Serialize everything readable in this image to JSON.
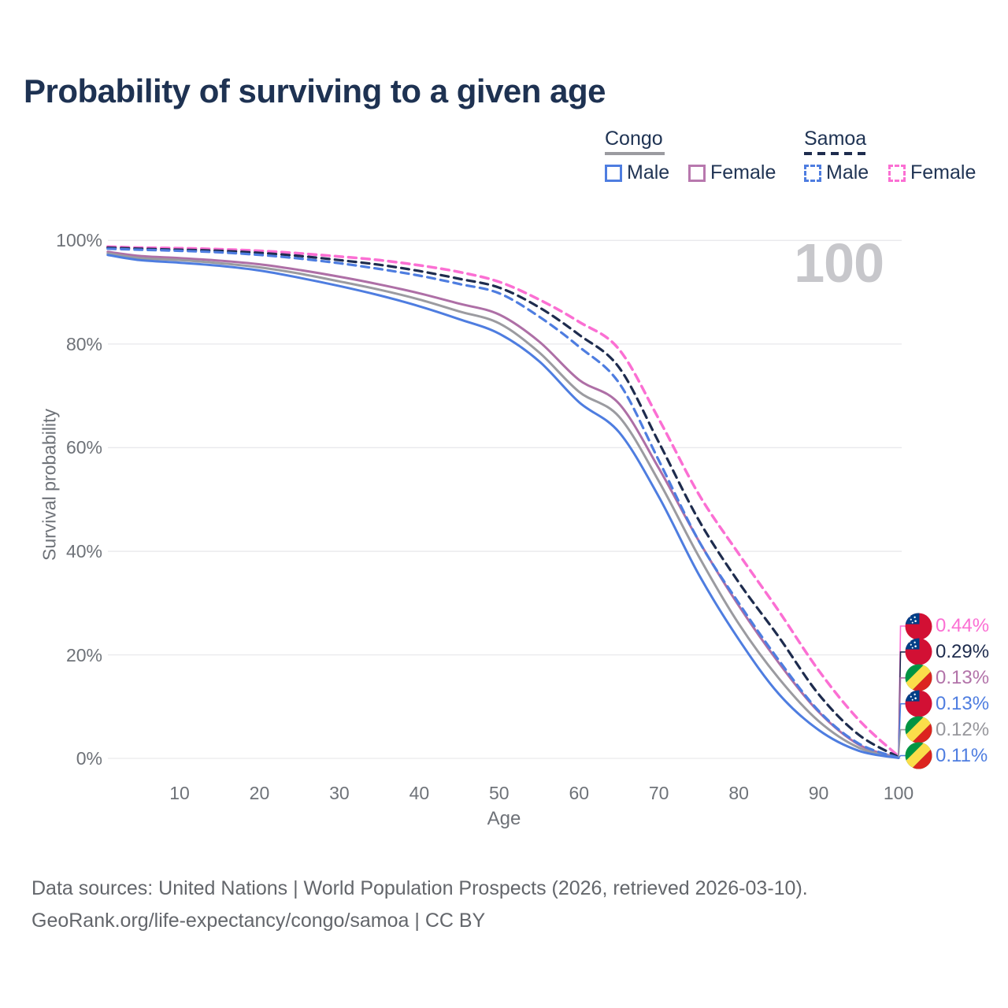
{
  "title": "Probability of surviving to a given age",
  "watermark": "100",
  "legend": {
    "congo": {
      "label": "Congo",
      "male": "Male",
      "female": "Female"
    },
    "samoa": {
      "label": "Samoa",
      "male": "Male",
      "female": "Female"
    }
  },
  "footer": {
    "line1": "Data sources: United Nations | World Population Prospects (2026, retrieved 2026-03-10).",
    "line2": "GeoRank.org/life-expectancy/congo/samoa | CC BY"
  },
  "colors": {
    "title_navy": "#1e3252",
    "congo_male_blue": "#4e7de0",
    "congo_both_gray": "#9b9ba0",
    "congo_female_plum": "#b078aa",
    "samoa_male_blue": "#4e7de0",
    "samoa_both_navy": "#1e2c4e",
    "samoa_female_pink": "#fb6fd3",
    "gridline": "#e9e9ec",
    "axis_text": "#6e7278",
    "watermark_gray": "#c7c7cb",
    "samoa_flag_red": "#d21034",
    "samoa_flag_blue": "#003f87",
    "congo_flag_green": "#009543",
    "congo_flag_yellow": "#fbde4a",
    "congo_flag_red": "#dc241f"
  },
  "chart_data": {
    "type": "line",
    "title": "Probability of surviving to a given age",
    "xlabel": "Age",
    "ylabel": "Survival probability",
    "xlim": [
      0,
      100
    ],
    "ylim": [
      0,
      100
    ],
    "grid": "horizontal",
    "x_ticks": [
      10,
      20,
      30,
      40,
      50,
      60,
      70,
      80,
      90,
      100
    ],
    "y_ticks": [
      "0%",
      "20%",
      "40%",
      "60%",
      "80%",
      "100%"
    ],
    "ages": [
      1,
      5,
      10,
      15,
      20,
      25,
      30,
      35,
      40,
      45,
      50,
      55,
      60,
      65,
      70,
      75,
      80,
      85,
      90,
      95,
      100
    ],
    "series": [
      {
        "id": "samoa-female",
        "country": "Samoa",
        "sex": "Female",
        "color": "#fb6fd3",
        "dash": true,
        "width": 3.5,
        "values": [
          98.8,
          98.6,
          98.5,
          98.3,
          98.0,
          97.5,
          96.9,
          96.2,
          95.2,
          93.9,
          92.0,
          88.6,
          84.3,
          79.0,
          65.5,
          51.0,
          39.5,
          28.5,
          17.0,
          7.5,
          0.44
        ],
        "end_label": {
          "text": "0.44%",
          "flag": "samoa",
          "color": "#fb6fd3",
          "rank": 0
        }
      },
      {
        "id": "samoa-both",
        "country": "Samoa",
        "sex": "Both",
        "color": "#1e2c4e",
        "dash": true,
        "width": 3.2,
        "values": [
          98.6,
          98.4,
          98.2,
          98.0,
          97.6,
          97.0,
          96.2,
          95.3,
          94.1,
          92.6,
          90.9,
          87.1,
          81.8,
          75.5,
          61.0,
          46.0,
          34.0,
          23.5,
          12.4,
          4.6,
          0.29
        ],
        "end_label": {
          "text": "0.29%",
          "flag": "samoa",
          "color": "#1e2c4e",
          "rank": 1
        }
      },
      {
        "id": "congo-female",
        "country": "Congo",
        "sex": "Female",
        "color": "#ae6fa6",
        "dash": false,
        "width": 3,
        "values": [
          97.8,
          97.0,
          96.6,
          96.1,
          95.4,
          94.3,
          93.0,
          91.5,
          89.8,
          87.8,
          85.7,
          80.5,
          73.1,
          68.5,
          56.0,
          42.0,
          29.5,
          18.5,
          9.0,
          2.7,
          0.13
        ],
        "end_label": {
          "text": "0.13%",
          "flag": "congo",
          "color": "#b273a9",
          "rank": 2
        }
      },
      {
        "id": "samoa-male",
        "country": "Samoa",
        "sex": "Male",
        "color": "#4e7de0",
        "dash": true,
        "width": 3.2,
        "values": [
          98.4,
          98.2,
          98.0,
          97.7,
          97.2,
          96.5,
          95.6,
          94.5,
          93.2,
          91.6,
          89.8,
          85.3,
          79.5,
          72.5,
          57.5,
          42.0,
          30.0,
          19.0,
          9.2,
          2.9,
          0.13
        ],
        "end_label": {
          "text": "0.13%",
          "flag": "samoa",
          "color": "#4e7de0",
          "rank": 3
        }
      },
      {
        "id": "congo-both",
        "country": "Congo",
        "sex": "Both",
        "color": "#9b9ba0",
        "dash": false,
        "width": 3,
        "values": [
          97.5,
          96.6,
          96.2,
          95.6,
          94.8,
          93.6,
          92.1,
          90.5,
          88.6,
          86.3,
          84.0,
          78.4,
          70.8,
          66.0,
          53.5,
          39.0,
          26.0,
          15.5,
          7.2,
          2.1,
          0.12
        ],
        "end_label": {
          "text": "0.12%",
          "flag": "congo",
          "color": "#97979c",
          "rank": 4
        }
      },
      {
        "id": "congo-male",
        "country": "Congo",
        "sex": "Male",
        "color": "#4e7de0",
        "dash": false,
        "width": 3,
        "values": [
          97.2,
          96.2,
          95.7,
          95.1,
          94.2,
          92.8,
          91.2,
          89.4,
          87.3,
          84.8,
          82.0,
          76.7,
          68.8,
          63.0,
          50.5,
          35.5,
          23.0,
          12.5,
          5.5,
          1.5,
          0.11
        ],
        "end_label": {
          "text": "0.11%",
          "flag": "congo",
          "color": "#4e7de0",
          "rank": 5
        }
      }
    ]
  }
}
